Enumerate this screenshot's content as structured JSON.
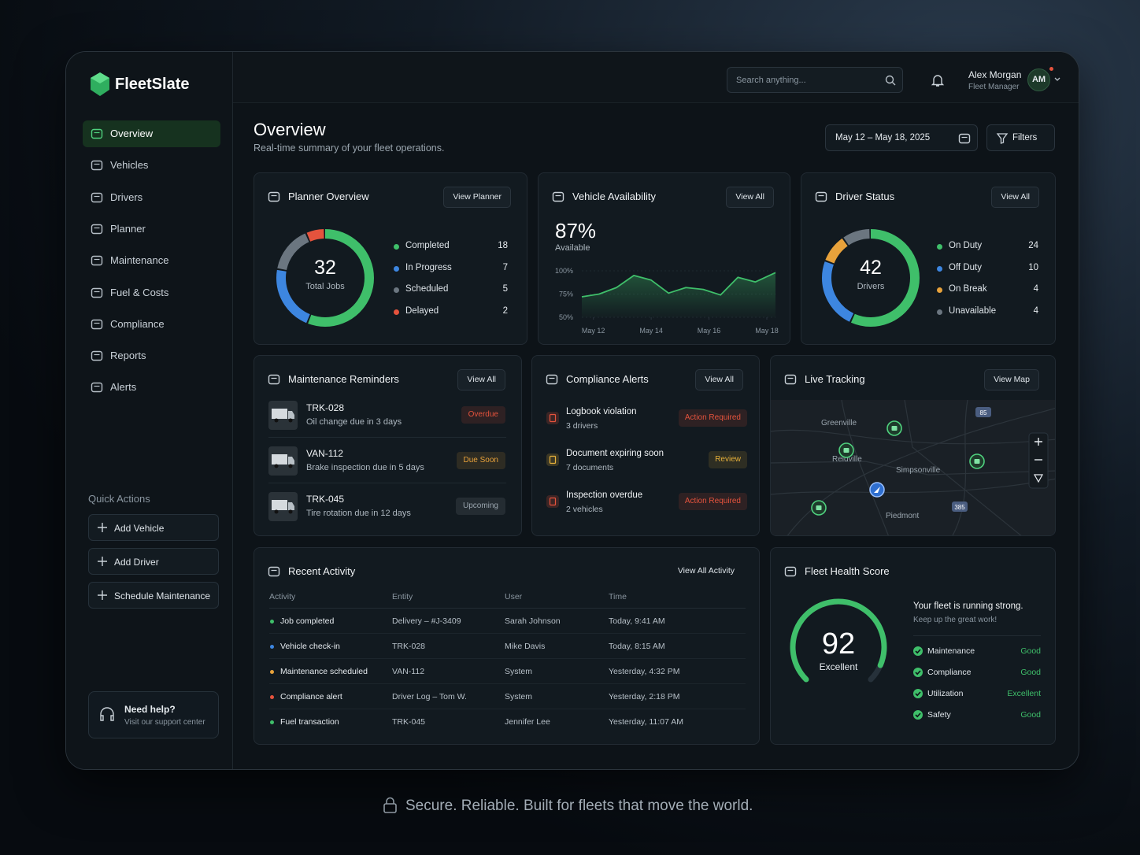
{
  "brand": "FleetSlate",
  "nav": {
    "items": [
      "Overview",
      "Vehicles",
      "Drivers",
      "Planner",
      "Maintenance",
      "Fuel & Costs",
      "Compliance",
      "Reports",
      "Alerts"
    ],
    "active": 0
  },
  "quick_actions": {
    "title": "Quick Actions",
    "items": [
      "Add Vehicle",
      "Add Driver",
      "Schedule Maintenance"
    ]
  },
  "help": {
    "title": "Need help?",
    "subtitle": "Visit our support center"
  },
  "search": {
    "placeholder": "Search anything..."
  },
  "user": {
    "name": "Alex Morgan",
    "role": "Fleet Manager",
    "initials": "AM"
  },
  "header": {
    "title": "Overview",
    "subtitle": "Real-time summary of your fleet operations.",
    "date_range": "May 12 – May 18, 2025",
    "filters": "Filters"
  },
  "planner": {
    "title": "Planner Overview",
    "button": "View Planner",
    "chart_data": {
      "type": "donut",
      "center_value": 32,
      "center_label": "Total Jobs",
      "categories": [
        "Completed",
        "In Progress",
        "Scheduled",
        "Delayed"
      ],
      "values": [
        18,
        7,
        5,
        2
      ],
      "colors": [
        "#3fbf6a",
        "#3d86e0",
        "#6b7680",
        "#e5533d"
      ]
    }
  },
  "availability": {
    "title": "Vehicle Availability",
    "button": "View All",
    "headline": "87%",
    "headline_label": "Available",
    "chart_data": {
      "type": "area",
      "color": "#3fbf6a",
      "x": [
        -0.4,
        0.2,
        0.8,
        1.4,
        2.0,
        2.6,
        3.2,
        3.8,
        4.4,
        5.0,
        5.6,
        6.3
      ],
      "values": [
        72,
        75,
        82,
        95,
        90,
        76,
        82,
        80,
        74,
        93,
        88,
        98
      ],
      "xlim": [
        -0.4,
        6.3
      ],
      "xticks": [
        {
          "value": 0,
          "label": "May 12"
        },
        {
          "value": 2,
          "label": "May 14"
        },
        {
          "value": 4,
          "label": "May 16"
        },
        {
          "value": 6,
          "label": "May 18"
        }
      ],
      "ylim": [
        50,
        100
      ],
      "yticks": [
        {
          "value": 100,
          "label": "100%"
        },
        {
          "value": 75,
          "label": "75%"
        },
        {
          "value": 50,
          "label": "50%"
        }
      ],
      "grid": true
    }
  },
  "driver_status": {
    "title": "Driver Status",
    "button": "View All",
    "chart_data": {
      "type": "donut",
      "center_value": 42,
      "center_label": "Drivers",
      "categories": [
        "On Duty",
        "Off Duty",
        "On Break",
        "Unavailable"
      ],
      "values": [
        24,
        10,
        4,
        4
      ],
      "colors": [
        "#3fbf6a",
        "#3d86e0",
        "#e8a23b",
        "#6b7680"
      ]
    }
  },
  "maintenance": {
    "title": "Maintenance Reminders",
    "button": "View All",
    "items": [
      {
        "vehicle": "TRK-028",
        "task": "Oil change due in 3 days",
        "status": "Overdue",
        "color": "#e5533d"
      },
      {
        "vehicle": "VAN-112",
        "task": "Brake inspection due in 5 days",
        "status": "Due Soon",
        "color": "#e8a23b"
      },
      {
        "vehicle": "TRK-045",
        "task": "Tire rotation due in 12 days",
        "status": "Upcoming",
        "color": "#9aa5ae"
      }
    ]
  },
  "compliance": {
    "title": "Compliance Alerts",
    "button": "View All",
    "items": [
      {
        "title": "Logbook violation",
        "detail": "3 drivers",
        "status": "Action Required",
        "color": "#e5533d"
      },
      {
        "title": "Document expiring soon",
        "detail": "7 documents",
        "status": "Review",
        "color": "#e8b23b"
      },
      {
        "title": "Inspection overdue",
        "detail": "2 vehicles",
        "status": "Action Required",
        "color": "#e5533d"
      }
    ]
  },
  "tracking": {
    "title": "Live Tracking",
    "button": "View Map",
    "places": [
      "Greenville",
      "Reidville",
      "Simpsonville",
      "Piedmont"
    ],
    "routes": [
      "85",
      "385"
    ]
  },
  "activity": {
    "title": "Recent Activity",
    "button": "View All Activity",
    "columns": [
      "Activity",
      "Entity",
      "User",
      "Time"
    ],
    "rows": [
      [
        "Job completed",
        "Delivery – #J-3409",
        "Sarah Johnson",
        "Today, 9:41 AM"
      ],
      [
        "Vehicle check-in",
        "TRK-028",
        "Mike Davis",
        "Today, 8:15 AM"
      ],
      [
        "Maintenance scheduled",
        "VAN-112",
        "System",
        "Yesterday, 4:32 PM"
      ],
      [
        "Compliance alert",
        "Driver Log – Tom W.",
        "System",
        "Yesterday, 2:18 PM"
      ],
      [
        "Fuel transaction",
        "TRK-045",
        "Jennifer Lee",
        "Yesterday, 11:07 AM"
      ]
    ],
    "row_colors": [
      "#3fbf6a",
      "#3d86e0",
      "#e8a23b",
      "#e5533d",
      "#3fbf6a"
    ]
  },
  "health": {
    "title": "Fleet Health Score",
    "chart_data": {
      "type": "gauge",
      "value": 92,
      "label": "Excellent",
      "ylim": [
        0,
        100
      ],
      "color": "#3fbf6a"
    },
    "message": "Your fleet is running strong.",
    "submessage": "Keep up the great work!",
    "items": [
      {
        "name": "Maintenance",
        "status": "Good"
      },
      {
        "name": "Compliance",
        "status": "Good"
      },
      {
        "name": "Utilization",
        "status": "Excellent"
      },
      {
        "name": "Safety",
        "status": "Good"
      }
    ],
    "status_color": "#3fbf6a"
  },
  "footer": "Secure. Reliable. Built for fleets that move the world."
}
